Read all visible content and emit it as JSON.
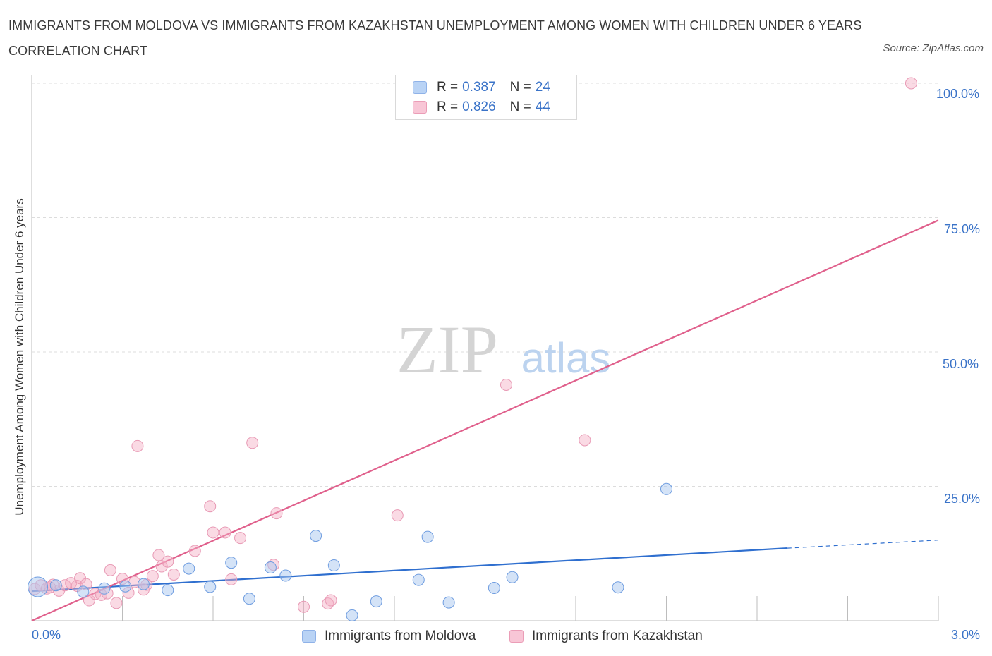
{
  "title": "IMMIGRANTS FROM MOLDOVA VS IMMIGRANTS FROM KAZAKHSTAN UNEMPLOYMENT AMONG WOMEN WITH CHILDREN UNDER 6 YEARS CORRELATION CHART",
  "source": "Source: ZipAtlas.com",
  "watermark": {
    "zip": "ZIP",
    "atlas": "atlas"
  },
  "legend": {
    "r_label": "R =",
    "n_label": "N =",
    "series1": {
      "r": "0.387",
      "n": "24"
    },
    "series2": {
      "r": "0.826",
      "n": "44"
    }
  },
  "colors": {
    "moldova": "#2f6fcf",
    "kazakhstan": "#e0608c",
    "axis_labels": "#3a73c8"
  },
  "chart_data": {
    "type": "scatter",
    "title": "IMMIGRANTS FROM MOLDOVA VS IMMIGRANTS FROM KAZAKHSTAN UNEMPLOYMENT AMONG WOMEN WITH CHILDREN UNDER 6 YEARS CORRELATION CHART",
    "xlabel": "",
    "ylabel": "Unemployment Among Women with Children Under 6 years",
    "xlim": [
      0,
      3.0
    ],
    "ylim": [
      0,
      100
    ],
    "x_tick_labels": [
      "0.0%",
      "3.0%"
    ],
    "y_tick_labels": [
      "100.0%",
      "75.0%",
      "50.0%",
      "25.0%"
    ],
    "y_tick_values": [
      100,
      75,
      50,
      25
    ],
    "grid": true,
    "legend_position": "bottom-center",
    "series": [
      {
        "name": "Immigrants from Moldova",
        "r": 0.387,
        "n": 24,
        "points": [
          [
            0.02,
            6.3
          ],
          [
            0.17,
            5.4
          ],
          [
            0.24,
            6.0
          ],
          [
            0.31,
            6.4
          ],
          [
            0.37,
            6.8
          ],
          [
            0.45,
            5.7
          ],
          [
            0.52,
            9.7
          ],
          [
            0.59,
            6.3
          ],
          [
            0.66,
            10.8
          ],
          [
            0.72,
            4.1
          ],
          [
            0.79,
            9.9
          ],
          [
            0.84,
            8.4
          ],
          [
            0.94,
            15.8
          ],
          [
            1.0,
            10.3
          ],
          [
            1.06,
            1.0
          ],
          [
            1.14,
            3.6
          ],
          [
            1.28,
            7.6
          ],
          [
            1.31,
            15.6
          ],
          [
            1.38,
            3.4
          ],
          [
            1.53,
            6.1
          ],
          [
            1.59,
            8.1
          ],
          [
            1.94,
            6.2
          ],
          [
            2.1,
            24.5
          ],
          [
            0.08,
            6.6
          ]
        ],
        "trend": {
          "x0": 0.0,
          "y0": 5.5,
          "x1": 2.5,
          "y1": 13.5,
          "dashed_to_x": 3.0,
          "dashed_to_y": 15.0
        }
      },
      {
        "name": "Immigrants from Kazakhstan",
        "r": 0.826,
        "n": 44,
        "points": [
          [
            0.01,
            5.9
          ],
          [
            0.03,
            6.6
          ],
          [
            0.05,
            6.0
          ],
          [
            0.07,
            6.7
          ],
          [
            0.09,
            5.6
          ],
          [
            0.11,
            6.6
          ],
          [
            0.13,
            7.0
          ],
          [
            0.15,
            6.5
          ],
          [
            0.16,
            7.9
          ],
          [
            0.19,
            3.8
          ],
          [
            0.21,
            5.0
          ],
          [
            0.23,
            4.8
          ],
          [
            0.25,
            5.1
          ],
          [
            0.26,
            9.4
          ],
          [
            0.28,
            3.3
          ],
          [
            0.3,
            7.8
          ],
          [
            0.32,
            5.2
          ],
          [
            0.34,
            7.2
          ],
          [
            0.35,
            32.5
          ],
          [
            0.37,
            5.8
          ],
          [
            0.38,
            6.7
          ],
          [
            0.4,
            8.3
          ],
          [
            0.42,
            12.2
          ],
          [
            0.43,
            10.1
          ],
          [
            0.45,
            11.0
          ],
          [
            0.47,
            8.6
          ],
          [
            0.54,
            13.0
          ],
          [
            0.59,
            21.3
          ],
          [
            0.6,
            16.4
          ],
          [
            0.64,
            16.4
          ],
          [
            0.66,
            7.7
          ],
          [
            0.69,
            15.4
          ],
          [
            0.73,
            33.1
          ],
          [
            0.8,
            10.4
          ],
          [
            0.81,
            20.0
          ],
          [
            0.9,
            2.6
          ],
          [
            0.98,
            3.2
          ],
          [
            0.99,
            3.8
          ],
          [
            1.21,
            19.6
          ],
          [
            1.57,
            43.9
          ],
          [
            1.83,
            33.6
          ],
          [
            2.91,
            100.0
          ],
          [
            0.06,
            6.2
          ],
          [
            0.18,
            6.8
          ]
        ],
        "trend": {
          "x0": 0.0,
          "y0": 0.0,
          "x1": 3.0,
          "y1": 74.5
        }
      }
    ]
  }
}
